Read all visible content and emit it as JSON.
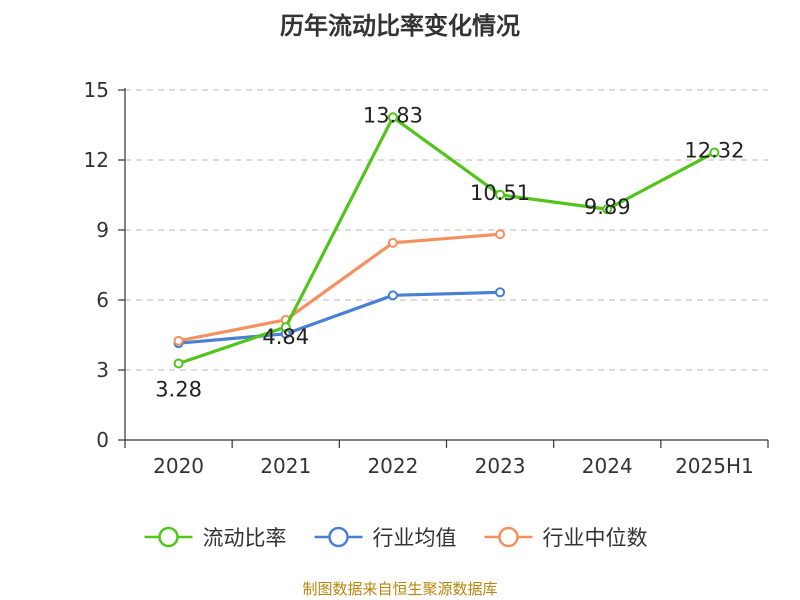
{
  "chart_data": {
    "type": "line",
    "title": "历年流动比率变化情况",
    "categories": [
      "2020",
      "2021",
      "2022",
      "2023",
      "2024",
      "2025H1"
    ],
    "ylim": [
      0,
      15
    ],
    "yticks": [
      0,
      3,
      6,
      9,
      12,
      15
    ],
    "grid": true,
    "legend_position": "bottom",
    "series": [
      {
        "name": "流动比率",
        "color": "#52c41a",
        "values": [
          3.28,
          4.84,
          13.83,
          10.51,
          9.89,
          12.32
        ],
        "labels": [
          "3.28",
          "4.84",
          "13.83",
          "10.51",
          "9.89",
          "12.32"
        ]
      },
      {
        "name": "行业均值",
        "color": "#4a7fd4",
        "values": [
          4.15,
          4.55,
          6.2,
          6.33,
          null,
          null
        ]
      },
      {
        "name": "行业中位数",
        "color": "#f5905f",
        "values": [
          4.25,
          5.15,
          8.45,
          8.82,
          null,
          null
        ]
      }
    ]
  },
  "source_note": "制图数据来自恒生聚源数据库"
}
